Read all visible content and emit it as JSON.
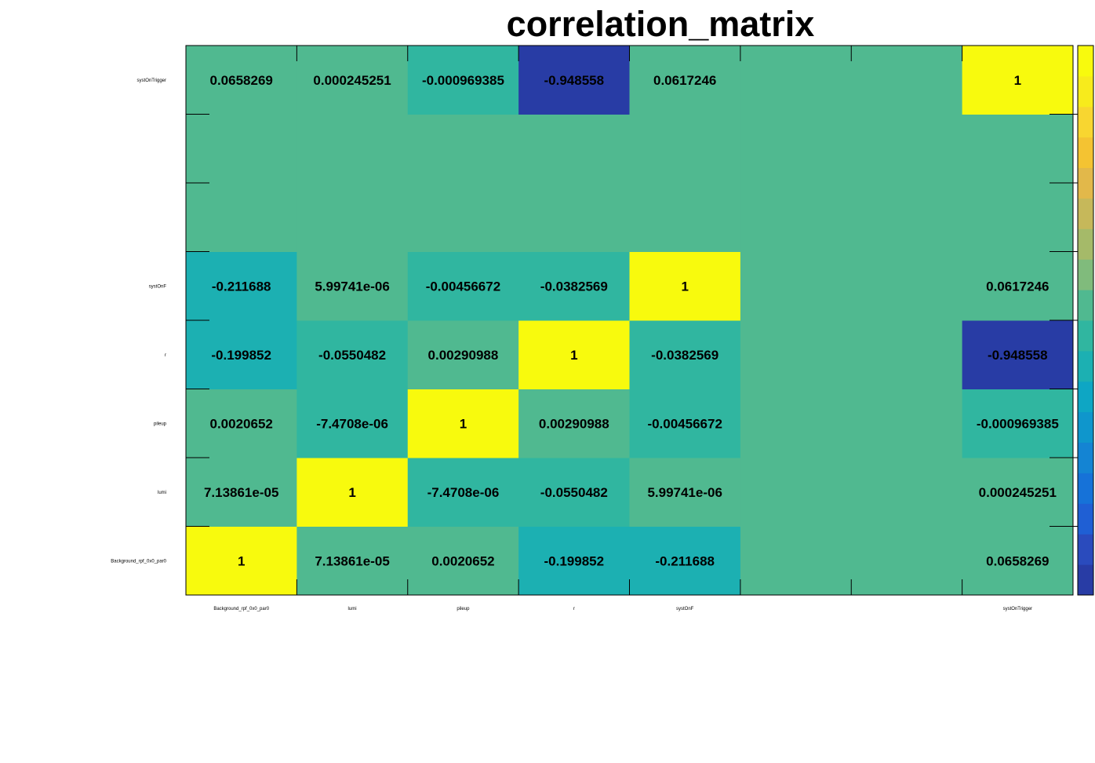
{
  "chart_data": {
    "type": "heatmap",
    "title": "correlation_matrix",
    "x_labels": [
      "Background_rpf_0x0_par0",
      "lumi",
      "pileup",
      "r",
      "systOnF",
      "",
      "",
      "systOnTrigger"
    ],
    "y_labels": [
      "Background_rpf_0x0_par0",
      "lumi",
      "pileup",
      "r",
      "systOnF",
      "",
      "",
      "systOnTrigger"
    ],
    "zlim": [
      -1,
      1
    ],
    "values": [
      [
        1,
        7.13861e-05,
        0.0020652,
        -0.199852,
        -0.211688,
        null,
        null,
        0.0658269
      ],
      [
        7.13861e-05,
        1,
        -7.4708e-06,
        -0.0550482,
        5.99741e-06,
        null,
        null,
        0.000245251
      ],
      [
        0.0020652,
        -7.4708e-06,
        1,
        0.00290988,
        -0.00456672,
        null,
        null,
        -0.000969385
      ],
      [
        -0.199852,
        -0.0550482,
        0.00290988,
        1,
        -0.0382569,
        null,
        null,
        -0.948558
      ],
      [
        -0.211688,
        5.99741e-06,
        -0.00456672,
        -0.0382569,
        1,
        null,
        null,
        0.0617246
      ],
      [
        null,
        null,
        null,
        null,
        null,
        null,
        null,
        null
      ],
      [
        null,
        null,
        null,
        null,
        null,
        null,
        null,
        null
      ],
      [
        0.0658269,
        0.000245251,
        -0.000969385,
        -0.948558,
        0.0617246,
        null,
        null,
        1
      ]
    ],
    "cell_labels": [
      [
        "1",
        "7.13861e-05",
        "0.0020652",
        "-0.199852",
        "-0.211688",
        "",
        "",
        "0.0658269"
      ],
      [
        "7.13861e-05",
        "1",
        "-7.4708e-06",
        "-0.0550482",
        "5.99741e-06",
        "",
        "",
        "0.000245251"
      ],
      [
        "0.0020652",
        "-7.4708e-06",
        "1",
        "0.00290988",
        "-0.00456672",
        "",
        "",
        "-0.000969385"
      ],
      [
        "-0.199852",
        "-0.0550482",
        "0.00290988",
        "1",
        "-0.0382569",
        "",
        "",
        "-0.948558"
      ],
      [
        "-0.211688",
        "5.99741e-06",
        "-0.00456672",
        "-0.0382569",
        "1",
        "",
        "",
        "0.0617246"
      ],
      [
        "",
        "",
        "",
        "",
        "",
        "",
        "",
        ""
      ],
      [
        "",
        "",
        "",
        "",
        "",
        "",
        "",
        ""
      ],
      [
        "0.0658269",
        "0.000245251",
        "-0.000969385",
        "-0.948558",
        "0.0617246",
        "",
        "",
        "1"
      ]
    ],
    "empty_color": "#50b990",
    "palette": [
      "#283ca5",
      "#2a4bbd",
      "#1f5fd4",
      "#1672d8",
      "#1484d3",
      "#0f96cc",
      "#0ea6c4",
      "#1cb0b2",
      "#30b6a0",
      "#50b990",
      "#80bb7c",
      "#a5ba69",
      "#c6b85a",
      "#e2b84a",
      "#f4c332",
      "#f8d630",
      "#f7eb1c",
      "#f8fa0d"
    ],
    "grid": false,
    "colorbar": "right"
  }
}
